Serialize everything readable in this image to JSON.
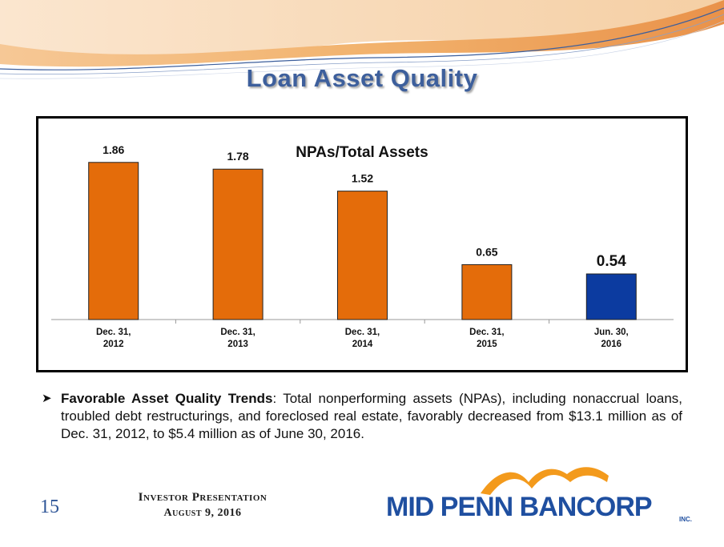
{
  "slide": {
    "title": "Loan Asset Quality",
    "page_number": "15",
    "footer_title": "Investor Presentation",
    "footer_date": "August 9, 2016"
  },
  "bullet": {
    "lead": "Favorable Asset Quality Trends",
    "body": ":  Total nonperforming assets (NPAs), including nonaccrual loans, troubled debt restructurings, and foreclosed real estate, favorably decreased from $13.1 million as of Dec. 31, 2012, to $5.4 million as of June 30, 2016."
  },
  "logo": {
    "text": "MID PENN BANCORP",
    "suffix": "INC."
  },
  "colors": {
    "bar_default": "#e46c0a",
    "bar_highlight": "#0c3ba0",
    "title": "#3d5f9c",
    "logo_blue": "#1f4fa0",
    "logo_orange": "#f39a1c"
  },
  "chart_data": {
    "type": "bar",
    "title": "NPAs/Total Assets",
    "categories": [
      [
        "Dec. 31,",
        "2012"
      ],
      [
        "Dec. 31,",
        "2013"
      ],
      [
        "Dec. 31,",
        "2014"
      ],
      [
        "Dec. 31,",
        "2015"
      ],
      [
        "Jun. 30,",
        "2016"
      ]
    ],
    "values": [
      1.86,
      1.78,
      1.52,
      0.65,
      0.54
    ],
    "data_labels": [
      "1.86",
      "1.78",
      "1.52",
      "0.65",
      "0.54"
    ],
    "highlight_index": 4,
    "ylim": [
      0,
      2.0
    ],
    "xlabel": "",
    "ylabel": "",
    "grid": false,
    "legend": "none"
  }
}
